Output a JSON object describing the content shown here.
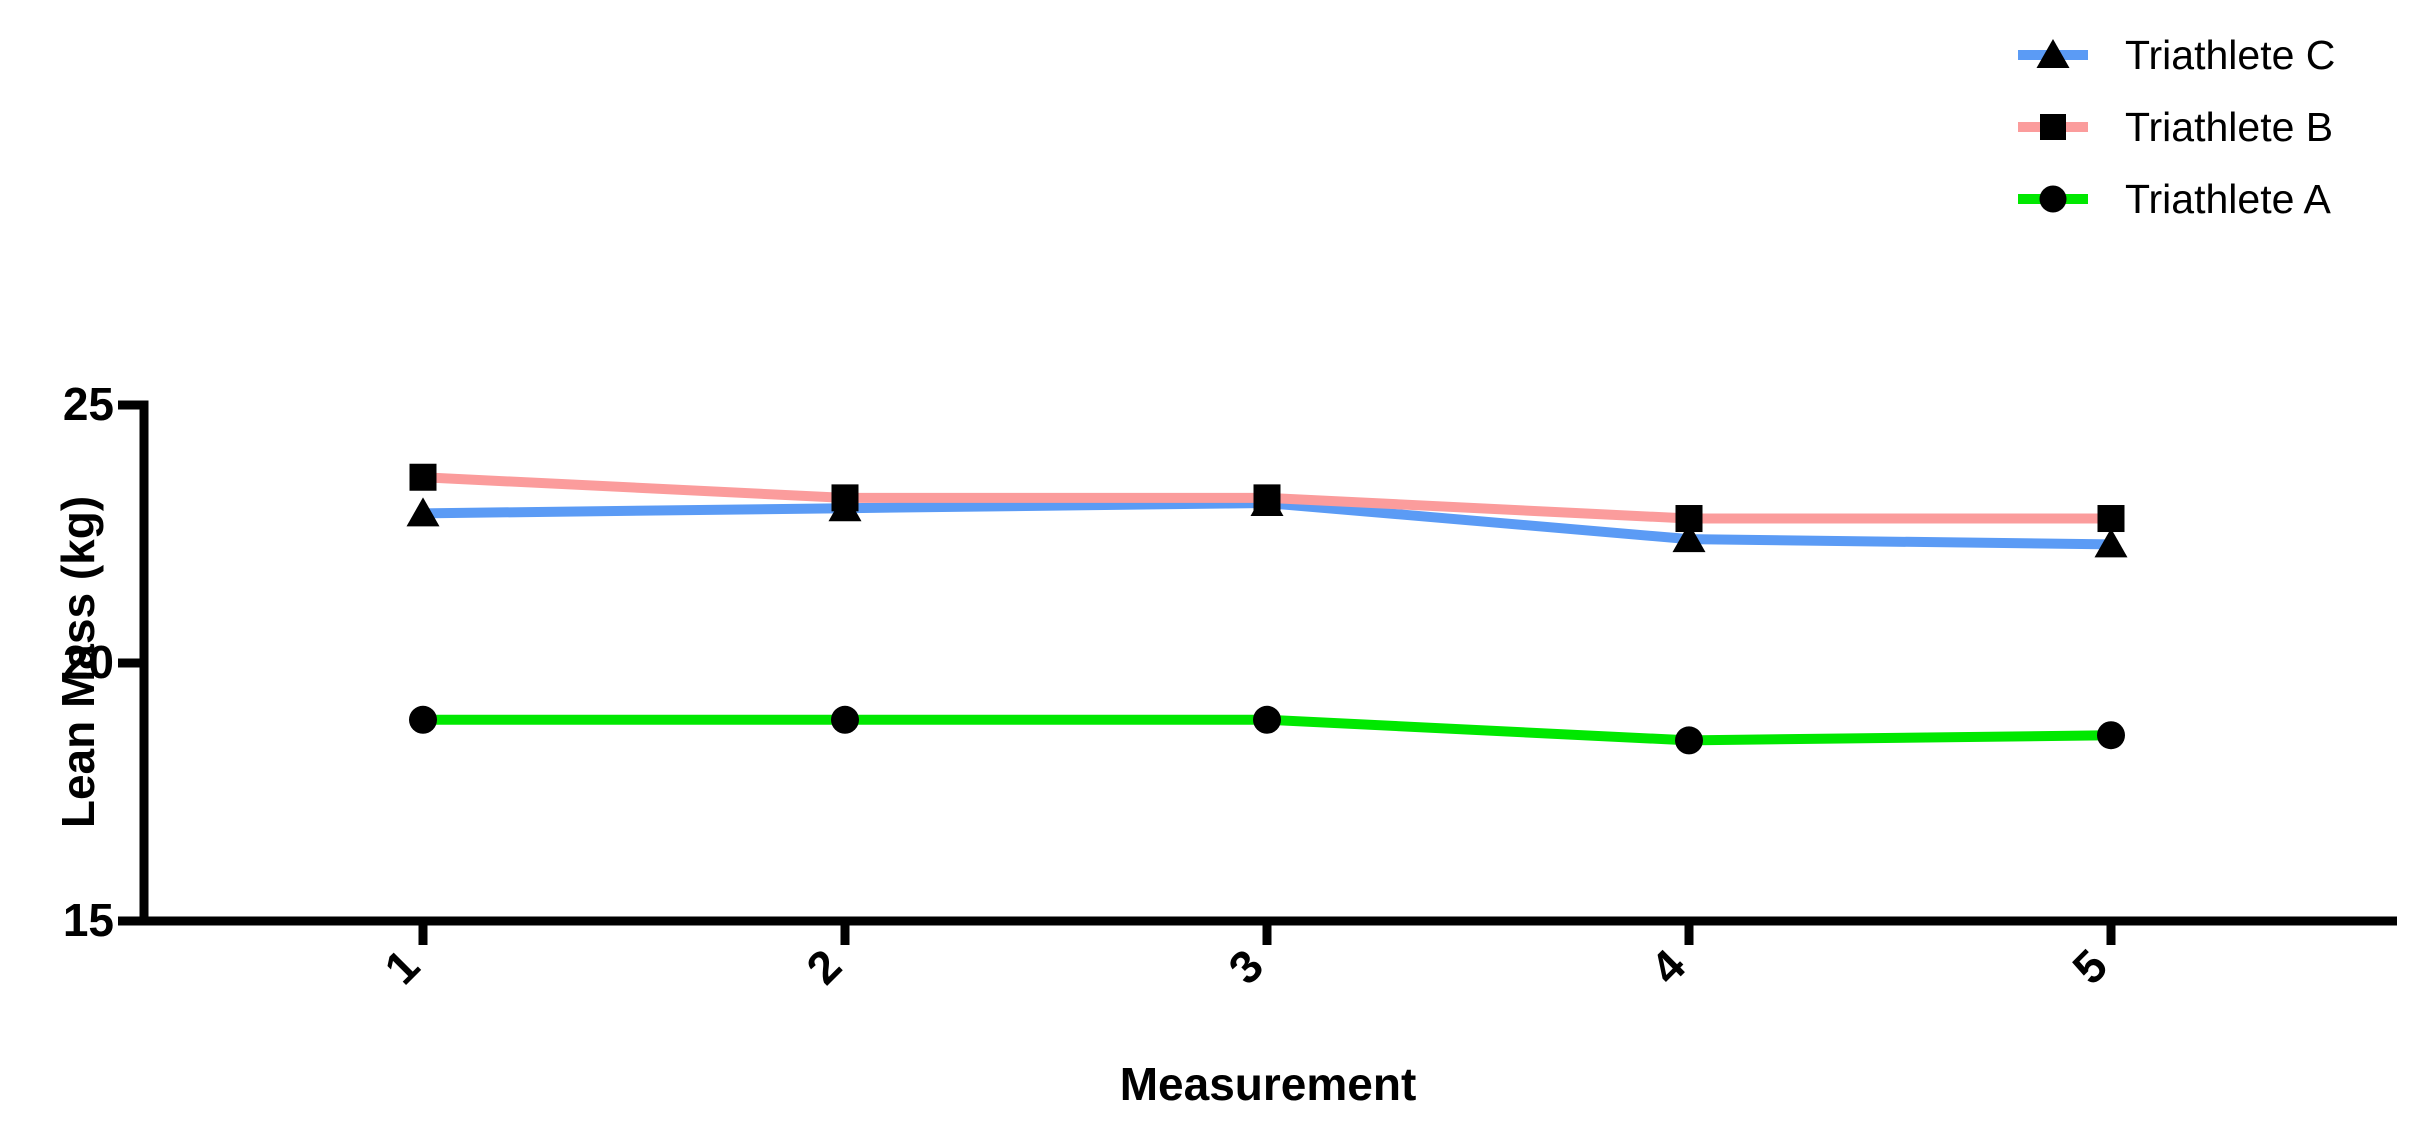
{
  "chart_data": {
    "type": "line",
    "title": "",
    "xlabel": "Measurement",
    "ylabel": "Lean Mass (kg)",
    "categories": [
      "1",
      "2",
      "3",
      "4",
      "5"
    ],
    "x": [
      1,
      2,
      3,
      4,
      5
    ],
    "yticks": [
      25,
      20,
      15
    ],
    "ylim": [
      15,
      25
    ],
    "grid": false,
    "legend_position": "top-right",
    "axis_color": "#000000",
    "background_color": "#ffffff",
    "series": [
      {
        "name": "Triathlete C",
        "color": "#5b9bf5",
        "marker": "triangle",
        "marker_color": "#000000",
        "values": [
          22.9,
          23.0,
          23.1,
          22.4,
          22.3
        ]
      },
      {
        "name": "Triathlete B",
        "color": "#fb9c9c",
        "marker": "square",
        "marker_color": "#000000",
        "values": [
          23.6,
          23.2,
          23.2,
          22.8,
          22.8
        ]
      },
      {
        "name": "Triathlete A",
        "color": "#00e800",
        "marker": "circle",
        "marker_color": "#000000",
        "values": [
          18.9,
          18.9,
          18.9,
          18.5,
          18.6
        ]
      }
    ]
  }
}
